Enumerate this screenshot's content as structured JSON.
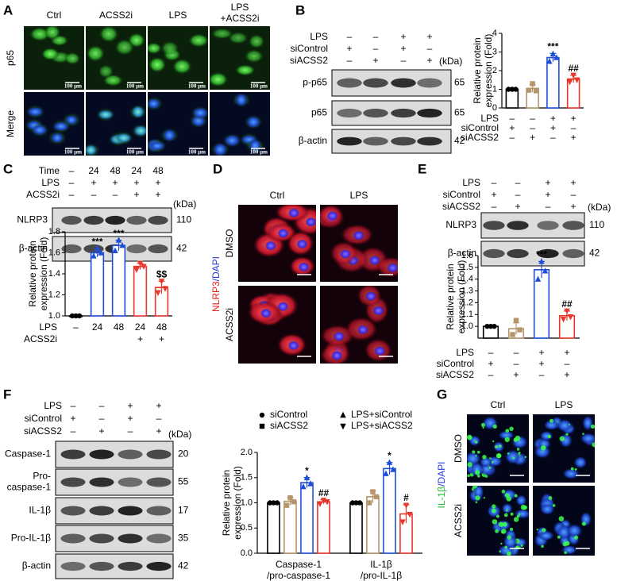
{
  "panel_labels": [
    "A",
    "B",
    "C",
    "D",
    "E",
    "F",
    "G"
  ],
  "panel_a": {
    "columns": [
      [
        "Ctrl"
      ],
      [
        "ACSS2i"
      ],
      [
        "LPS"
      ],
      [
        "LPS",
        "+ACSS2i"
      ]
    ],
    "rows": [
      "p65",
      "Merge"
    ],
    "scale_bar": "100 µm"
  },
  "panel_b": {
    "conditions": [
      {
        "label": "LPS",
        "signs": [
          "–",
          "–",
          "+",
          "+"
        ]
      },
      {
        "label": "siControl",
        "signs": [
          "+",
          "–",
          "+",
          "–"
        ]
      },
      {
        "label": "siACSS2",
        "signs": [
          "–",
          "+",
          "–",
          "+"
        ]
      }
    ],
    "kda_label": "(kDa)",
    "blots": [
      {
        "label": [
          "p-p65"
        ],
        "kda": 65
      },
      {
        "label": [
          "p65"
        ],
        "kda": 65
      },
      {
        "label": [
          "β-actin"
        ],
        "kda": 42
      }
    ]
  },
  "panel_c": {
    "conditions": [
      {
        "label": "Time",
        "signs": [
          "–",
          "24",
          "48",
          "24",
          "48"
        ]
      },
      {
        "label": "LPS",
        "signs": [
          "–",
          "+",
          "+",
          "+",
          "+"
        ]
      },
      {
        "label": "ACSS2i",
        "signs": [
          "–",
          "–",
          "–",
          "+",
          "+"
        ]
      }
    ],
    "kda_label": "(kDa)",
    "blots": [
      {
        "label": [
          "NLRP3"
        ],
        "kda": 110
      },
      {
        "label": [
          "β-actin"
        ],
        "kda": 42
      }
    ]
  },
  "panel_d": {
    "columns": [
      "Ctrl",
      "LPS"
    ],
    "rows": [
      "DMSO",
      "ACSS2i"
    ],
    "stain": [
      {
        "text": "NLRP3",
        "color": "#e8201c"
      },
      {
        "text": "/DAPI",
        "color": "#2a3adc"
      }
    ]
  },
  "panel_e": {
    "conditions": [
      {
        "label": "LPS",
        "signs": [
          "–",
          "–",
          "+",
          "+"
        ]
      },
      {
        "label": "siControl",
        "signs": [
          "+",
          "–",
          "+",
          "–"
        ]
      },
      {
        "label": "siACSS2",
        "signs": [
          "–",
          "+",
          "–",
          "+"
        ]
      }
    ],
    "kda_label": "(kDa)",
    "blots": [
      {
        "label": [
          "NLRP3"
        ],
        "kda": 110
      },
      {
        "label": [
          "β-actin"
        ],
        "kda": 42
      }
    ]
  },
  "panel_f": {
    "conditions": [
      {
        "label": "LPS",
        "signs": [
          "–",
          "–",
          "+",
          "+"
        ]
      },
      {
        "label": "siControl",
        "signs": [
          "+",
          "–",
          "+",
          "–"
        ]
      },
      {
        "label": "siACSS2",
        "signs": [
          "–",
          "+",
          "–",
          "+"
        ]
      }
    ],
    "kda_label": "(kDa)",
    "blots": [
      {
        "label": [
          "Caspase-1"
        ],
        "kda": 20
      },
      {
        "label": [
          "Pro-",
          "caspase-1"
        ],
        "kda": 55
      },
      {
        "label": [
          "IL-1β"
        ],
        "kda": 17
      },
      {
        "label": [
          "Pro-IL-1β"
        ],
        "kda": 35
      },
      {
        "label": [
          "β-actin"
        ],
        "kda": 42
      }
    ]
  },
  "panel_g": {
    "columns": [
      "Ctrl",
      "LPS"
    ],
    "rows": [
      "DMSO",
      "ACSS2i"
    ],
    "stain": [
      {
        "text": "IL-1β",
        "color": "#22b833"
      },
      {
        "text": "/DAPI",
        "color": "#2a3adc"
      }
    ]
  },
  "chart_data": [
    {
      "type": "bar",
      "y_label": [
        "Relative protein",
        "expression (Fold)"
      ],
      "ylim": [
        0,
        4
      ],
      "yticks": [
        0,
        1,
        2,
        3,
        4
      ],
      "values": [
        1.0,
        1.05,
        2.7,
        1.55
      ],
      "errors": [
        0.02,
        0.2,
        0.22,
        0.2
      ],
      "points": [
        [
          1.0,
          1.0,
          1.0
        ],
        [
          0.95,
          1.3,
          0.92
        ],
        [
          2.5,
          2.9,
          2.7
        ],
        [
          1.4,
          1.75,
          1.5
        ]
      ],
      "colors": [
        "#000000",
        "#b5956a",
        "#1f4fd8",
        "#e8372c"
      ],
      "markers": [
        "circle",
        "square",
        "triangle",
        "triangle-down"
      ],
      "annotations": [
        null,
        null,
        "***",
        "##"
      ],
      "conditions": [
        {
          "label": "LPS",
          "signs": [
            "–",
            "–",
            "+",
            "+"
          ]
        },
        {
          "label": "siControl",
          "signs": [
            "+",
            "–",
            "+",
            "–"
          ]
        },
        {
          "label": "siACSS2",
          "signs": [
            "–",
            "+",
            "–",
            "+"
          ]
        }
      ]
    },
    {
      "type": "bar",
      "y_label": [
        "Relative protein",
        "expression (Fold)"
      ],
      "ylim": [
        1.0,
        1.8
      ],
      "yticks": [
        {
          "value": 1.0,
          "label": "1.0"
        },
        1.2,
        1.4,
        1.6,
        1.8
      ],
      "values": [
        1.0,
        1.6,
        1.67,
        1.47,
        1.27
      ],
      "errors": [
        0.01,
        0.04,
        0.05,
        0.03,
        0.06
      ],
      "points": [
        [
          1.0,
          1.0,
          1.0
        ],
        [
          1.57,
          1.64,
          1.6
        ],
        [
          1.62,
          1.72,
          1.67
        ],
        [
          1.44,
          1.5,
          1.47
        ],
        [
          1.22,
          1.33,
          1.26
        ]
      ],
      "colors": [
        "#000000",
        "#1f4fd8",
        "#1f4fd8",
        "#e8372c",
        "#e8372c"
      ],
      "markers": [
        "circle",
        "triangle",
        "triangle",
        "triangle-down",
        "triangle-down"
      ],
      "annotations": [
        null,
        "***",
        "***",
        null,
        "$$"
      ],
      "conditions": [
        {
          "label": "LPS",
          "signs": [
            "–",
            "24",
            "48",
            "24",
            "48"
          ]
        },
        {
          "label": "ACSS2i",
          "signs": [
            null,
            null,
            null,
            "+",
            "+"
          ]
        }
      ]
    },
    {
      "type": "bar",
      "y_label": [
        "Relative protein",
        "expression (Fold)"
      ],
      "ylim": [
        0.9,
        1.6
      ],
      "yticks": [
        {
          "value": 1.0,
          "label": "1.0"
        },
        1.1,
        1.2,
        1.3,
        1.4,
        1.5,
        1.6
      ],
      "values": [
        1.0,
        0.98,
        1.48,
        1.09
      ],
      "errors": [
        0.005,
        0.05,
        0.07,
        0.04
      ],
      "points": [
        [
          1.0,
          1.0,
          1.0
        ],
        [
          0.93,
          1.05,
          0.97
        ],
        [
          1.4,
          1.55,
          1.47
        ],
        [
          1.06,
          1.13,
          1.08
        ]
      ],
      "colors": [
        "#000000",
        "#b5956a",
        "#1f4fd8",
        "#e8372c"
      ],
      "markers": [
        "circle",
        "square",
        "triangle",
        "triangle-down"
      ],
      "annotations": [
        null,
        null,
        "***",
        "##"
      ],
      "conditions": [
        {
          "label": "LPS",
          "signs": [
            "–",
            "–",
            "+",
            "+"
          ]
        },
        {
          "label": "siControl",
          "signs": [
            "+",
            "–",
            "+",
            "–"
          ]
        },
        {
          "label": "siACSS2",
          "signs": [
            "–",
            "+",
            "–",
            "+"
          ]
        }
      ]
    },
    {
      "type": "grouped-bar",
      "y_label": [
        "Relative protein",
        "expression (Fold)"
      ],
      "ylim": [
        0,
        2.0
      ],
      "yticks": [
        {
          "value": 0,
          "label": "0.0"
        },
        0.5,
        {
          "value": 1,
          "label": "1.0"
        },
        1.5,
        {
          "value": 2,
          "label": "2.0"
        }
      ],
      "categories": [
        [
          "Caspase-1",
          "/pro-caspase-1"
        ],
        [
          "IL-1β",
          "/pro-IL-1β"
        ]
      ],
      "series": [
        {
          "name": "siControl",
          "color": "#000000",
          "marker": "circle",
          "values": [
            1.0,
            1.0
          ],
          "errors": [
            0.01,
            0.01
          ],
          "points": [
            [
              1.0,
              1.0,
              1.0
            ],
            [
              1.0,
              1.0,
              1.0
            ]
          ],
          "annotations": [
            null,
            null
          ]
        },
        {
          "name": "siACSS2",
          "color": "#b5956a",
          "marker": "square",
          "values": [
            1.03,
            1.12
          ],
          "errors": [
            0.08,
            0.12
          ],
          "points": [
            [
              0.95,
              1.1,
              1.02
            ],
            [
              1.0,
              1.22,
              1.12
            ]
          ],
          "annotations": [
            null,
            null
          ]
        },
        {
          "name": "LPS+siControl",
          "color": "#1f4fd8",
          "marker": "triangle",
          "values": [
            1.4,
            1.68
          ],
          "errors": [
            0.1,
            0.12
          ],
          "points": [
            [
              1.32,
              1.5,
              1.38
            ],
            [
              1.58,
              1.8,
              1.66
            ]
          ],
          "annotations": [
            "*",
            "*"
          ]
        },
        {
          "name": "LPS+siACSS2",
          "color": "#e8372c",
          "marker": "triangle-down",
          "values": [
            1.02,
            0.78
          ],
          "errors": [
            0.04,
            0.18
          ],
          "points": [
            [
              0.98,
              1.05,
              1.02
            ],
            [
              0.62,
              0.95,
              0.77
            ]
          ],
          "annotations": [
            "##",
            "#"
          ]
        }
      ]
    }
  ]
}
